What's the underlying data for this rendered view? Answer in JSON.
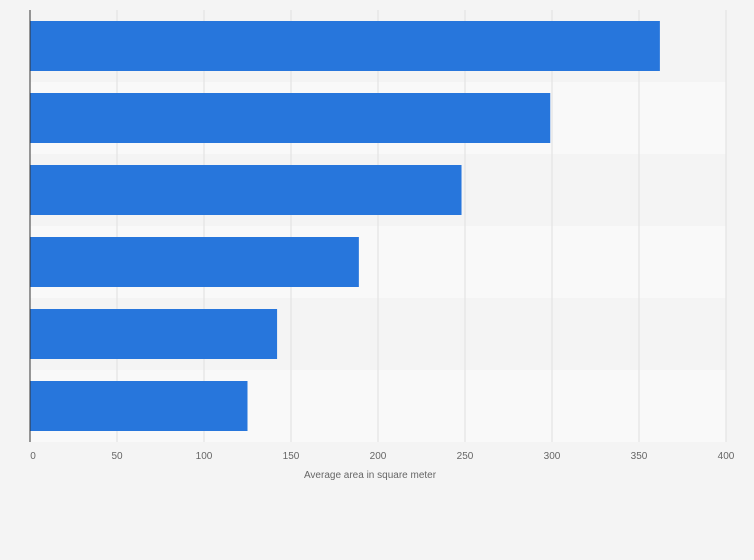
{
  "chart_data": {
    "type": "bar",
    "orientation": "horizontal",
    "categories": [
      "",
      "",
      "",
      "",
      "",
      ""
    ],
    "values": [
      362,
      299,
      248,
      189,
      142,
      125
    ],
    "title": "",
    "xlabel": "Average area in square meter",
    "ylabel": "",
    "xlim": [
      0,
      400
    ],
    "xticks": [
      0,
      50,
      100,
      150,
      200,
      250,
      300,
      350,
      400
    ],
    "xtick_labels": [
      "0",
      "50",
      "100",
      "150",
      "200",
      "250",
      "300",
      "350",
      "400"
    ],
    "grid": true,
    "legend": "none",
    "colors": {
      "bar": "#2776dc",
      "band_light": "#f4f4f4",
      "band_dark": "#f9f9f9",
      "grid": "#e0e0e0",
      "axis": "#333333"
    }
  }
}
